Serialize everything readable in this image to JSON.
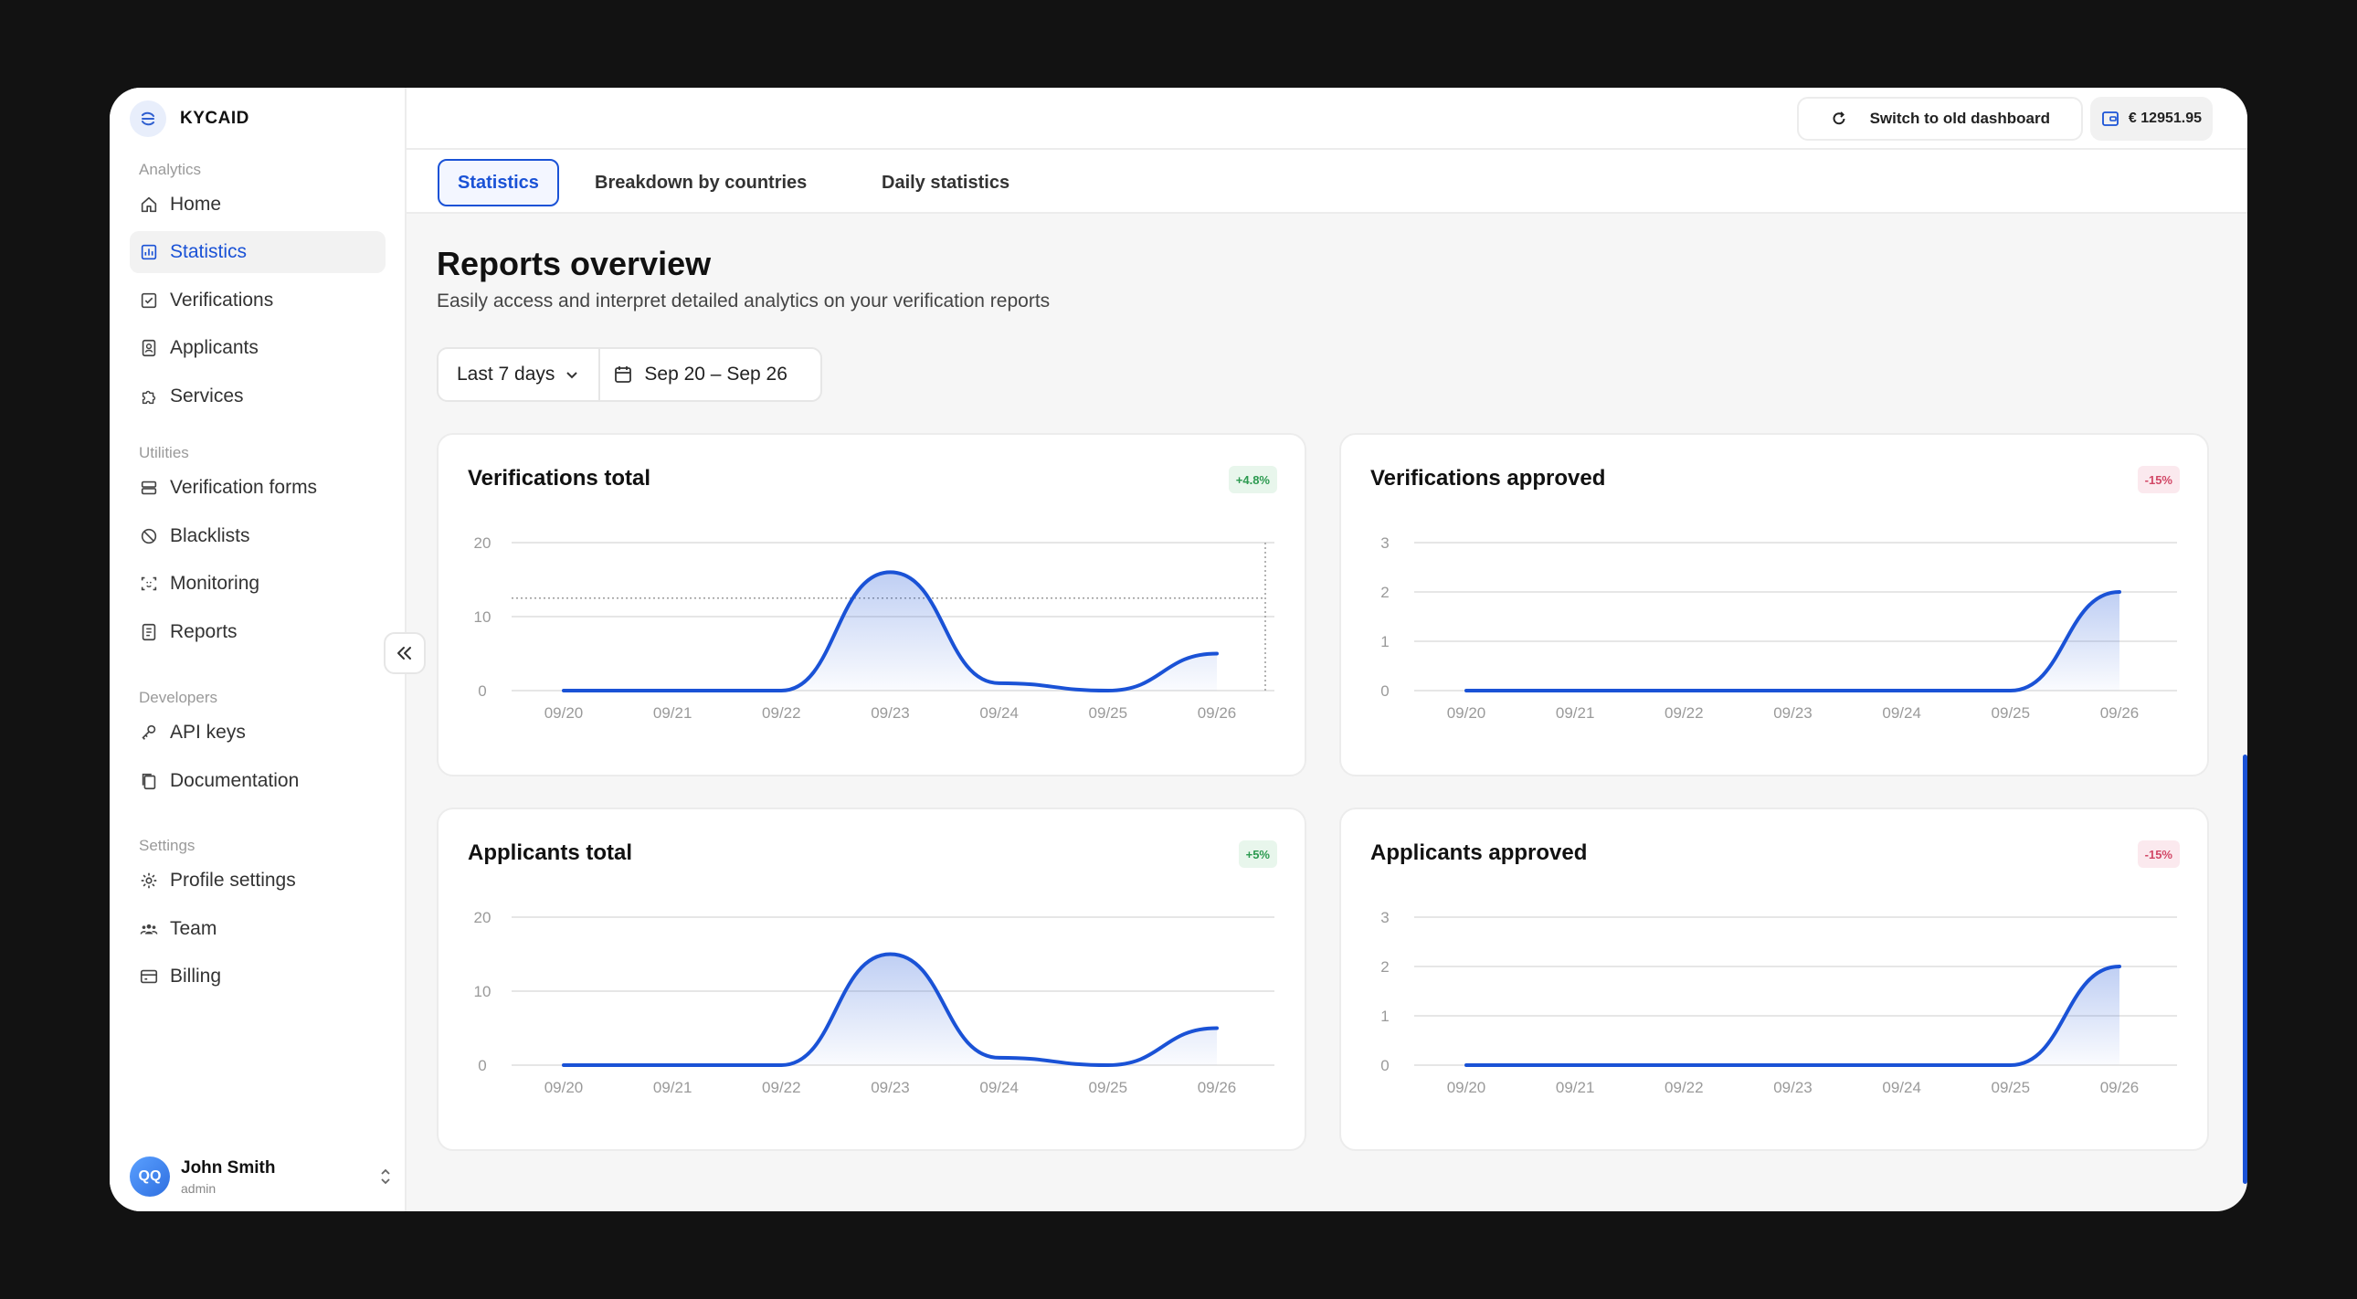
{
  "app": {
    "name": "KYCAID"
  },
  "sidebar": {
    "sections": {
      "analytics": "Analytics",
      "utilities": "Utilities",
      "developers": "Developers",
      "settings": "Settings"
    },
    "items": {
      "home": "Home",
      "statistics": "Statistics",
      "verifications": "Verifications",
      "applicants": "Applicants",
      "services": "Services",
      "verification_forms": "Verification forms",
      "blacklists": "Blacklists",
      "monitoring": "Monitoring",
      "reports": "Reports",
      "api_keys": "API keys",
      "documentation": "Documentation",
      "profile_settings": "Profile settings",
      "team": "Team",
      "billing": "Billing"
    },
    "active_item": "statistics"
  },
  "user": {
    "initials": "QQ",
    "name": "John Smith",
    "role": "admin"
  },
  "topbar": {
    "switch_label": "Switch to old dashboard",
    "balance": "€ 12951.95"
  },
  "tabs": [
    {
      "label": "Statistics",
      "active": true
    },
    {
      "label": "Breakdown by countries",
      "active": false
    },
    {
      "label": "Daily statistics",
      "active": false
    }
  ],
  "page": {
    "title": "Reports overview",
    "subtitle": "Easily access and interpret detailed analytics on your verification reports"
  },
  "filter": {
    "range": "Last 7 days",
    "dates": "Sep 20 – Sep 26"
  },
  "colors": {
    "accent": "#1a52d6",
    "positive": "#2c9a50",
    "negative": "#d24766"
  },
  "chart_data": [
    {
      "type": "area",
      "title": "Verifications total",
      "badge": "+4.8%",
      "trend": "positive",
      "categories": [
        "09/20",
        "09/21",
        "09/22",
        "09/23",
        "09/24",
        "09/25",
        "09/26"
      ],
      "values": [
        0,
        0,
        0,
        16,
        1,
        0,
        5
      ],
      "yticks": [
        0,
        10,
        20
      ],
      "ylim": [
        0,
        20
      ],
      "reference_line": 12.5,
      "grid": true
    },
    {
      "type": "area",
      "title": "Verifications approved",
      "badge": "-15%",
      "trend": "negative",
      "categories": [
        "09/20",
        "09/21",
        "09/22",
        "09/23",
        "09/24",
        "09/25",
        "09/26"
      ],
      "values": [
        0,
        0,
        0,
        0,
        0,
        0,
        2
      ],
      "yticks": [
        0,
        1,
        2,
        3
      ],
      "ylim": [
        0,
        3
      ],
      "grid": true
    },
    {
      "type": "area",
      "title": "Applicants total",
      "badge": "+5%",
      "trend": "positive",
      "categories": [
        "09/20",
        "09/21",
        "09/22",
        "09/23",
        "09/24",
        "09/25",
        "09/26"
      ],
      "values": [
        0,
        0,
        0,
        15,
        1,
        0,
        5
      ],
      "yticks": [
        0,
        10,
        20
      ],
      "ylim": [
        0,
        20
      ],
      "grid": true
    },
    {
      "type": "area",
      "title": "Applicants approved",
      "badge": "-15%",
      "trend": "negative",
      "categories": [
        "09/20",
        "09/21",
        "09/22",
        "09/23",
        "09/24",
        "09/25",
        "09/26"
      ],
      "values": [
        0,
        0,
        0,
        0,
        0,
        0,
        2
      ],
      "yticks": [
        0,
        1,
        2,
        3
      ],
      "ylim": [
        0,
        3
      ],
      "grid": true
    }
  ]
}
